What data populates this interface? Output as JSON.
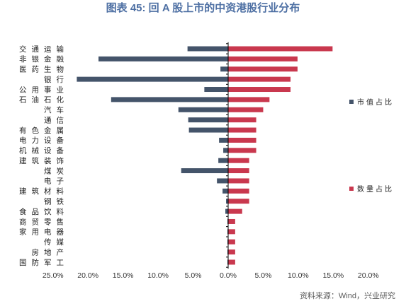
{
  "source": "资料来源：Wind，兴业研究",
  "chart_data": {
    "type": "bar",
    "orientation": "horizontal",
    "title": "图表 45: 回 A 股上市的中资港股行业分布",
    "categories": [
      "交通运输",
      "非银金融",
      "医药生物",
      "银行",
      "公用事业",
      "石油石化",
      "汽车",
      "通信",
      "有色金属",
      "电力设备",
      "机械设备",
      "建筑装饰",
      "煤炭",
      "电子",
      "建筑材料",
      "钢铁",
      "食品饮料",
      "商贸零售",
      "家用电器",
      "传媒",
      "房地产",
      "国防军工"
    ],
    "series": [
      {
        "name": "市值占比",
        "color": "#44546a",
        "values": [
          5.8,
          18.5,
          1.1,
          21.6,
          3.4,
          16.7,
          7.1,
          5.7,
          5.6,
          1.3,
          0.7,
          1.4,
          6.7,
          1.6,
          0.8,
          0.3,
          0.4,
          0.1,
          0.1,
          0.1,
          0.1,
          0.1
        ]
      },
      {
        "name": "数量占比",
        "color": "#c9384e",
        "values": [
          14.9,
          9.9,
          9.9,
          8.9,
          8.9,
          5.9,
          5.0,
          4.0,
          4.0,
          4.0,
          4.0,
          3.0,
          3.0,
          3.0,
          3.0,
          3.0,
          2.0,
          1.0,
          1.0,
          1.0,
          1.0,
          1.0
        ]
      }
    ],
    "x_ticks": [
      -25,
      -20,
      -15,
      -10,
      -5,
      0,
      5,
      10,
      15,
      20
    ],
    "x_tick_labels": [
      "25.0%",
      "20.0%",
      "15.0%",
      "10.0%",
      "5.0%",
      "0.0%",
      "5.0%",
      "10.0%",
      "15.0%",
      "20.0%"
    ],
    "xlim": [
      -25,
      20
    ],
    "grid": false,
    "legend_position": "right"
  }
}
